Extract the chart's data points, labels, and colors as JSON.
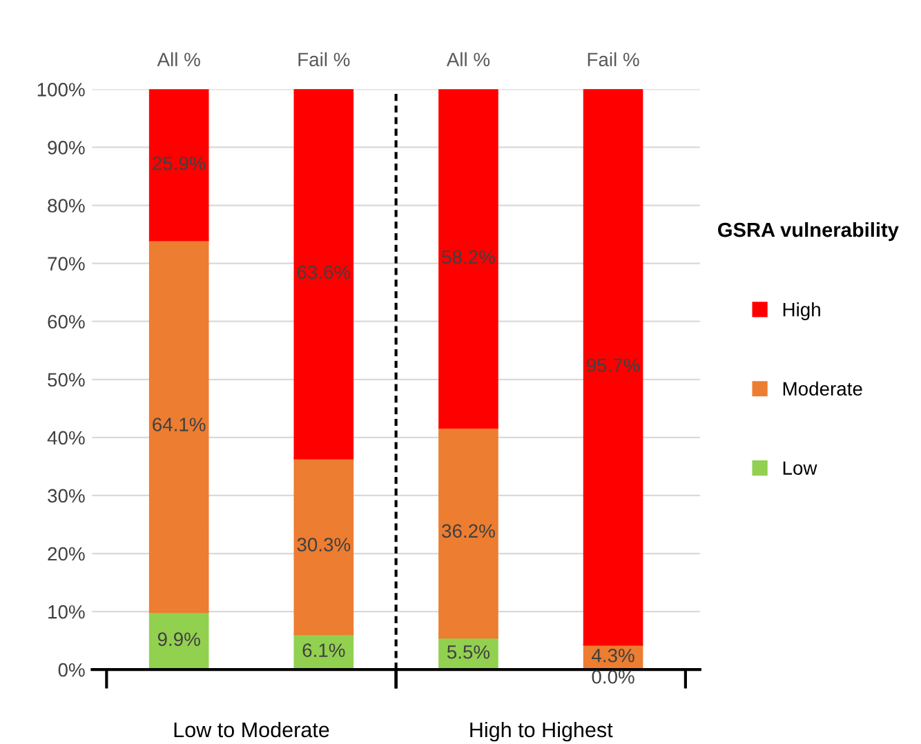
{
  "chart_data": {
    "type": "bar",
    "stacked": true,
    "categories": [
      "All %",
      "Fail %",
      "All %",
      "Fail %"
    ],
    "series": [
      {
        "name": "Low",
        "color": "#92d050",
        "values": [
          9.9,
          6.1,
          5.5,
          0.0
        ],
        "value_labels": [
          "9.9%",
          "6.1%",
          "5.5%",
          "0.0%"
        ]
      },
      {
        "name": "Moderate",
        "color": "#ed7d31",
        "values": [
          64.1,
          30.3,
          36.2,
          4.3
        ],
        "value_labels": [
          "64.1%",
          "30.3%",
          "36.2%",
          "4.3%"
        ]
      },
      {
        "name": "High",
        "color": "#ff0000",
        "values": [
          25.9,
          63.6,
          58.2,
          95.7
        ],
        "value_labels": [
          "25.9%",
          "63.6%",
          "58.2%",
          "95.7%"
        ]
      }
    ],
    "ylim": [
      0,
      100
    ],
    "yticks": [
      {
        "value": 0,
        "label": "0%"
      },
      {
        "value": 10,
        "label": "10%"
      },
      {
        "value": 20,
        "label": "20%"
      },
      {
        "value": 30,
        "label": "30%"
      },
      {
        "value": 40,
        "label": "40%"
      },
      {
        "value": 50,
        "label": "50%"
      },
      {
        "value": 60,
        "label": "60%"
      },
      {
        "value": 70,
        "label": "70%"
      },
      {
        "value": 80,
        "label": "80%"
      },
      {
        "value": 90,
        "label": "90%"
      },
      {
        "value": 100,
        "label": "100%"
      }
    ],
    "grid": "y",
    "legend": "right",
    "legend_title": "GSRA vulnerability",
    "annotations": [
      "Low to Moderate",
      "High to Highest"
    ]
  }
}
